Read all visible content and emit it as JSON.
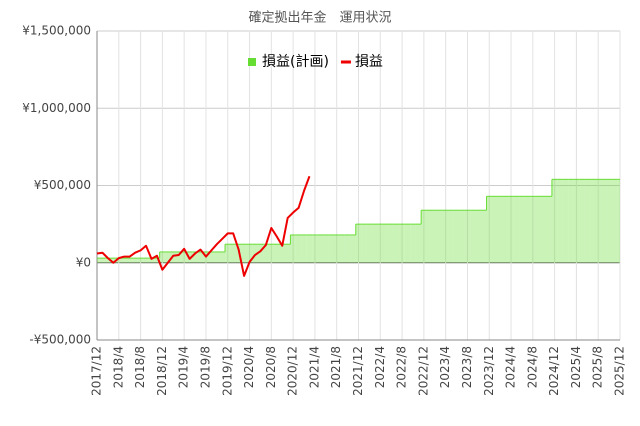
{
  "chart_data": {
    "type": "line",
    "title": "確定拠出年金　運用状況",
    "categories": [
      "2017/12",
      null,
      null,
      null,
      "2018/4",
      null,
      null,
      null,
      "2018/8",
      null,
      null,
      null,
      "2018/12",
      null,
      null,
      null,
      "2019/4",
      null,
      null,
      null,
      "2019/8",
      null,
      null,
      null,
      "2019/12",
      null,
      null,
      null,
      "2020/4",
      null,
      null,
      null,
      "2020/8",
      null,
      null,
      null,
      "2020/12",
      null,
      null,
      null,
      "2021/4",
      null,
      null,
      null,
      "2021/8",
      null,
      null,
      null,
      "2021/12",
      null,
      null,
      null,
      "2022/4",
      null,
      null,
      null,
      "2022/8",
      null,
      null,
      null,
      "2022/12",
      null,
      null,
      null,
      "2023/4",
      null,
      null,
      null,
      "2023/8",
      null,
      null,
      null,
      "2023/12",
      null,
      null,
      null,
      "2024/4",
      null,
      null,
      null,
      "2024/8",
      null,
      null,
      null,
      "2024/12",
      null,
      null,
      null,
      "2025/4",
      null,
      null,
      null,
      "2025/8",
      null,
      null,
      null,
      "2025/12"
    ],
    "series": [
      {
        "name": "損益(計画)",
        "color": "#66dd33",
        "style": "step-area",
        "values": [
          30000,
          30000,
          30000,
          30000,
          30000,
          30000,
          30000,
          30000,
          30000,
          30000,
          30000,
          30000,
          70000,
          70000,
          70000,
          70000,
          70000,
          70000,
          70000,
          70000,
          70000,
          70000,
          70000,
          70000,
          120000,
          120000,
          120000,
          120000,
          120000,
          120000,
          120000,
          120000,
          120000,
          120000,
          120000,
          120000,
          180000,
          180000,
          180000,
          180000,
          180000,
          180000,
          180000,
          180000,
          180000,
          180000,
          180000,
          180000,
          250000,
          250000,
          250000,
          250000,
          250000,
          250000,
          250000,
          250000,
          250000,
          250000,
          250000,
          250000,
          340000,
          340000,
          340000,
          340000,
          340000,
          340000,
          340000,
          340000,
          340000,
          340000,
          340000,
          340000,
          430000,
          430000,
          430000,
          430000,
          430000,
          430000,
          430000,
          430000,
          430000,
          430000,
          430000,
          430000,
          540000,
          540000,
          540000,
          540000,
          540000,
          540000,
          540000,
          540000,
          540000,
          540000,
          540000,
          540000,
          540000
        ]
      },
      {
        "name": "損益",
        "color": "#ee0000",
        "style": "line",
        "values": [
          60000,
          65000,
          30000,
          0,
          30000,
          40000,
          40000,
          65000,
          80000,
          110000,
          25000,
          45000,
          -45000,
          0,
          45000,
          50000,
          90000,
          25000,
          60000,
          85000,
          40000,
          80000,
          120000,
          155000,
          190000,
          190000,
          85000,
          -85000,
          5000,
          50000,
          75000,
          115000,
          225000,
          170000,
          110000,
          290000,
          325000,
          355000,
          465000,
          560000,
          null,
          null,
          null,
          null,
          null,
          null,
          null,
          null,
          null,
          null,
          null,
          null,
          null,
          null,
          null,
          null,
          null,
          null,
          null,
          null,
          null,
          null,
          null,
          null,
          null,
          null,
          null,
          null,
          null,
          null,
          null,
          null,
          null,
          null,
          null,
          null,
          null,
          null,
          null,
          null,
          null,
          null,
          null,
          null,
          null,
          null,
          null,
          null,
          null,
          null,
          null,
          null,
          null,
          null,
          null,
          null,
          null
        ]
      }
    ],
    "ylim": [
      -500000,
      1500000
    ],
    "yticks": [
      {
        "value": -500000,
        "label": "-¥500,000"
      },
      {
        "value": 0,
        "label": "¥0"
      },
      {
        "value": 500000,
        "label": "¥500,000"
      },
      {
        "value": 1000000,
        "label": "¥1,000,000"
      },
      {
        "value": 1500000,
        "label": "¥1,500,000"
      }
    ],
    "grid": true,
    "legend": "top"
  }
}
